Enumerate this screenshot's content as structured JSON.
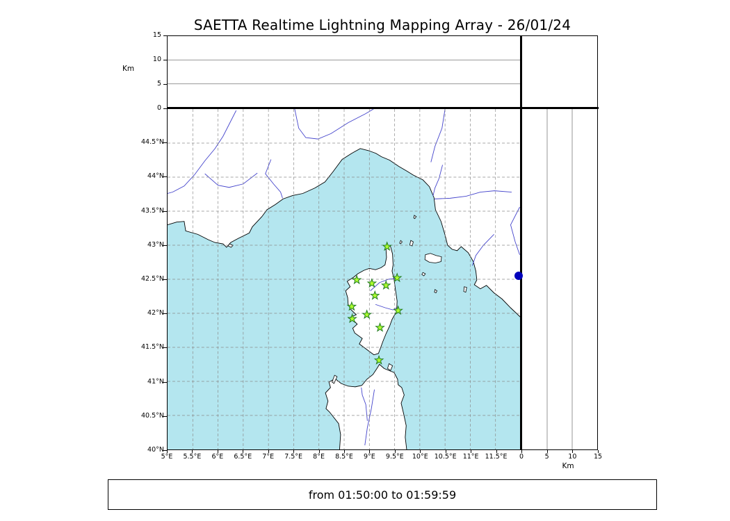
{
  "title": "SAETTA Realtime Lightning Mapping Array - 26/01/24",
  "footer": "from 01:50:00 to 01:59:59",
  "altitude_axis": {
    "label": "Km",
    "ticks": [
      "0",
      "5",
      "10",
      "15"
    ],
    "values": [
      0,
      5,
      10,
      15
    ],
    "max_km": 15
  },
  "map": {
    "lon_min": 5,
    "lon_max": 12,
    "lat_min": 40,
    "lat_max": 45,
    "grid_step_deg": 0.5,
    "lon_tick_labels": [
      "5°E",
      "5.5°E",
      "6°E",
      "6.5°E",
      "7°E",
      "7.5°E",
      "8°E",
      "8.5°E",
      "9°E",
      "9.5°E",
      "10°E",
      "10.5°E",
      "11°E",
      "11.5°E"
    ],
    "lat_tick_labels": [
      "40°N",
      "40.5°N",
      "41°N",
      "41.5°N",
      "42°N",
      "42.5°N",
      "43°N",
      "43.5°N",
      "44°N",
      "44.5°N"
    ],
    "sea_color": "#b4e6ef",
    "land_color": "#ffffff",
    "coast_color": "#000000",
    "river_color": "#4444cc",
    "grid_color": "#8a8a8a"
  },
  "chart_data": {
    "type": "scatter",
    "title": "SAETTA Realtime Lightning Mapping Array - 26/01/24",
    "time_window": "from 01:50:00 to 01:59:59",
    "map_panel": {
      "xlim": [
        5,
        12
      ],
      "ylim": [
        40,
        45
      ],
      "grid": "dashed 0.5 deg"
    },
    "altitude_panels": {
      "ylim_km": [
        0,
        15
      ],
      "ticks_km": [
        0,
        5,
        10,
        15
      ],
      "gridlines_km": [
        5,
        10
      ],
      "points": []
    },
    "lightning_sources": [],
    "stations": {
      "marker": "star",
      "fill": "#adff2f",
      "edge": "#1f7a1f",
      "lonlat": [
        [
          9.35,
          42.98
        ],
        [
          8.75,
          42.49
        ],
        [
          9.05,
          42.44
        ],
        [
          9.33,
          42.41
        ],
        [
          9.55,
          42.52
        ],
        [
          9.11,
          42.26
        ],
        [
          8.65,
          42.1
        ],
        [
          9.57,
          42.04
        ],
        [
          8.66,
          41.92
        ],
        [
          8.95,
          41.98
        ],
        [
          9.21,
          41.79
        ],
        [
          9.19,
          41.31
        ]
      ]
    },
    "detection_dot": {
      "lon": 11.95,
      "lat": 42.55,
      "color": "#0000bb",
      "radius_px": 6
    }
  }
}
